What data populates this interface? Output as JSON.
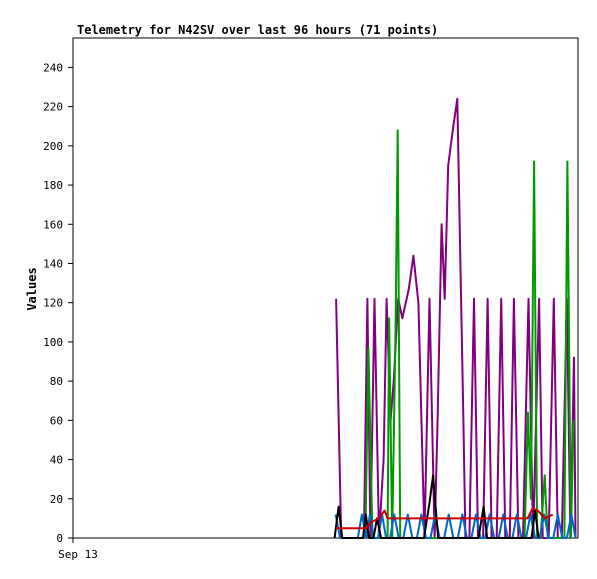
{
  "chart_data": {
    "type": "line",
    "title": "Telemetry for N42SV over last 96 hours (71 points)",
    "xlabel": "",
    "ylabel": "Values",
    "x_tick_labels": [
      "Sep 13"
    ],
    "y_ticks": [
      0,
      20,
      40,
      60,
      80,
      100,
      120,
      140,
      160,
      180,
      200,
      220,
      240
    ],
    "ylim": [
      0,
      255
    ],
    "xlim": [
      0,
      100
    ],
    "grid": false,
    "legend": "none",
    "series": [
      {
        "color": "#800080",
        "points": [
          [
            52.1,
            122
          ],
          [
            53.1,
            0
          ],
          [
            57.6,
            0
          ],
          [
            58.3,
            122
          ],
          [
            58.9,
            0
          ],
          [
            59.7,
            122
          ],
          [
            60.6,
            0
          ],
          [
            61.5,
            40
          ],
          [
            62.1,
            122
          ],
          [
            62.9,
            60
          ],
          [
            63.5,
            80
          ],
          [
            64.4,
            122
          ],
          [
            65.2,
            112
          ],
          [
            66.5,
            127
          ],
          [
            67.4,
            144
          ],
          [
            68.4,
            120
          ],
          [
            69.6,
            0
          ],
          [
            70.6,
            122
          ],
          [
            71.6,
            0
          ],
          [
            72.2,
            60
          ],
          [
            73.0,
            160
          ],
          [
            73.6,
            122
          ],
          [
            74.3,
            190
          ],
          [
            75.3,
            210
          ],
          [
            76.1,
            224
          ],
          [
            77.3,
            60
          ],
          [
            77.7,
            0
          ],
          [
            78.5,
            0
          ],
          [
            79.4,
            122
          ],
          [
            80.2,
            0
          ],
          [
            81.2,
            0
          ],
          [
            82.1,
            122
          ],
          [
            82.9,
            0
          ],
          [
            83.9,
            0
          ],
          [
            84.8,
            122
          ],
          [
            85.6,
            0
          ],
          [
            86.5,
            0
          ],
          [
            87.3,
            122
          ],
          [
            88.2,
            0
          ],
          [
            89.1,
            0
          ],
          [
            90.2,
            122
          ],
          [
            91.1,
            0
          ],
          [
            92.3,
            122
          ],
          [
            93.0,
            0
          ],
          [
            94.2,
            0
          ],
          [
            95.2,
            122
          ],
          [
            96.0,
            0
          ],
          [
            96.8,
            0
          ],
          [
            97.8,
            122
          ],
          [
            98.5,
            0
          ],
          [
            99.2,
            92
          ],
          [
            99.5,
            0
          ]
        ]
      },
      {
        "color": "#009900",
        "points": [
          [
            57.9,
            0
          ],
          [
            58.5,
            97
          ],
          [
            59.3,
            0
          ],
          [
            60.0,
            0
          ],
          [
            61.0,
            0
          ],
          [
            62.3,
            0
          ],
          [
            62.6,
            112
          ],
          [
            63.2,
            0
          ],
          [
            63.9,
            112
          ],
          [
            64.3,
            208
          ],
          [
            64.8,
            0
          ],
          [
            89.4,
            0
          ],
          [
            90.1,
            64
          ],
          [
            90.7,
            20
          ],
          [
            91.3,
            192
          ],
          [
            91.9,
            0
          ],
          [
            92.6,
            0
          ],
          [
            93.4,
            32
          ],
          [
            94.0,
            0
          ],
          [
            96.3,
            0
          ],
          [
            97.3,
            0
          ],
          [
            97.9,
            192
          ],
          [
            98.6,
            0
          ],
          [
            99.1,
            60
          ]
        ]
      },
      {
        "color": "#0066cc",
        "points": [
          [
            52.0,
            12
          ],
          [
            52.9,
            0
          ],
          [
            53.8,
            0
          ],
          [
            56.4,
            0
          ],
          [
            57.2,
            12
          ],
          [
            58.1,
            0
          ],
          [
            58.8,
            12
          ],
          [
            59.6,
            0
          ],
          [
            60.4,
            0
          ],
          [
            61.2,
            12
          ],
          [
            62.0,
            0
          ],
          [
            62.8,
            0
          ],
          [
            63.6,
            12
          ],
          [
            64.5,
            0
          ],
          [
            65.4,
            0
          ],
          [
            66.3,
            12
          ],
          [
            67.2,
            0
          ],
          [
            68.1,
            0
          ],
          [
            69.0,
            12
          ],
          [
            69.9,
            0
          ],
          [
            70.8,
            0
          ],
          [
            71.7,
            12
          ],
          [
            72.6,
            0
          ],
          [
            73.5,
            0
          ],
          [
            74.4,
            12
          ],
          [
            75.3,
            0
          ],
          [
            76.2,
            0
          ],
          [
            77.1,
            12
          ],
          [
            78.0,
            0
          ],
          [
            78.9,
            0
          ],
          [
            79.8,
            12
          ],
          [
            80.7,
            0
          ],
          [
            81.6,
            0
          ],
          [
            82.5,
            12
          ],
          [
            83.4,
            0
          ],
          [
            84.3,
            0
          ],
          [
            85.2,
            12
          ],
          [
            86.1,
            0
          ],
          [
            87.0,
            0
          ],
          [
            87.9,
            12
          ],
          [
            88.8,
            0
          ],
          [
            89.7,
            0
          ],
          [
            90.6,
            12
          ],
          [
            91.5,
            0
          ],
          [
            92.4,
            0
          ],
          [
            93.3,
            12
          ],
          [
            94.2,
            0
          ],
          [
            95.1,
            0
          ],
          [
            96.0,
            12
          ],
          [
            96.9,
            0
          ],
          [
            97.8,
            0
          ],
          [
            98.7,
            12
          ],
          [
            99.5,
            0
          ]
        ]
      },
      {
        "color": "#000000",
        "points": [
          [
            51.8,
            0
          ],
          [
            52.6,
            16
          ],
          [
            53.3,
            0
          ],
          [
            57.4,
            0
          ],
          [
            58.0,
            12
          ],
          [
            58.6,
            0
          ],
          [
            59.5,
            0
          ],
          [
            60.2,
            10
          ],
          [
            61.0,
            0
          ],
          [
            69.5,
            0
          ],
          [
            70.6,
            18
          ],
          [
            71.3,
            32
          ],
          [
            72.3,
            0
          ],
          [
            80.3,
            0
          ],
          [
            81.3,
            16
          ],
          [
            82.0,
            0
          ],
          [
            90.8,
            0
          ],
          [
            91.5,
            14
          ],
          [
            92.2,
            0
          ]
        ]
      },
      {
        "color": "#cc0000",
        "points": [
          [
            52.1,
            5
          ],
          [
            53.4,
            5
          ],
          [
            57.6,
            5
          ],
          [
            58.0,
            5
          ],
          [
            59.0,
            8
          ],
          [
            60.6,
            10
          ],
          [
            61.7,
            14
          ],
          [
            62.3,
            10
          ],
          [
            90.0,
            10
          ],
          [
            91.0,
            15
          ],
          [
            92.0,
            14
          ],
          [
            93.5,
            10
          ],
          [
            95.0,
            12
          ]
        ]
      }
    ]
  }
}
